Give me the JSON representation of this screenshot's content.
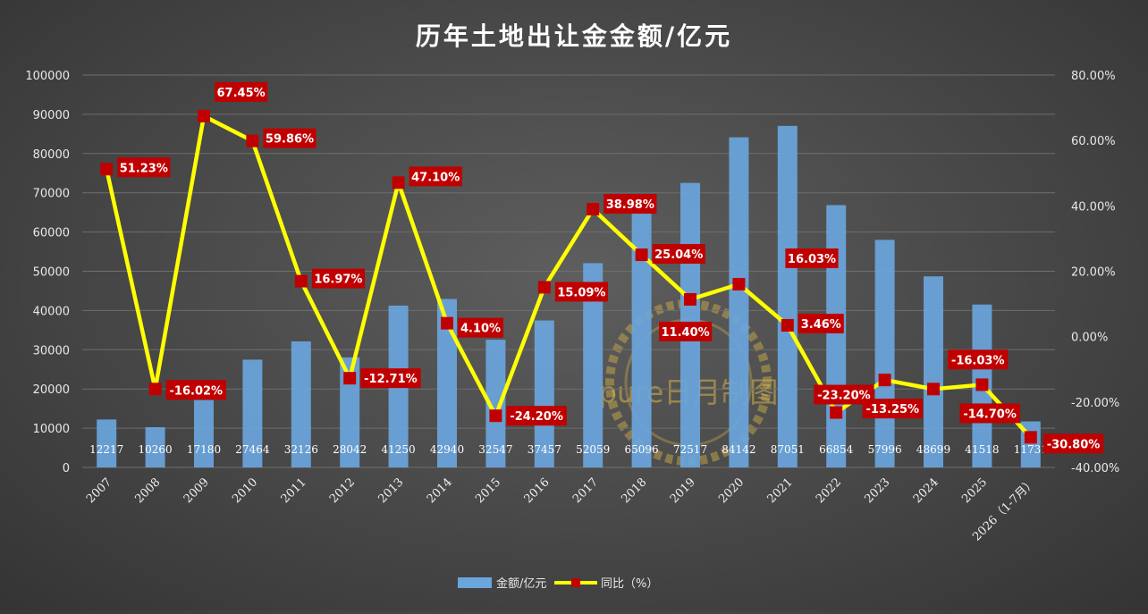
{
  "chart_data": {
    "type": "bar-line",
    "title": "历年土地出让金金额/亿元",
    "categories": [
      "2007",
      "2008",
      "2009",
      "2010",
      "2011",
      "2012",
      "2013",
      "2014",
      "2015",
      "2016",
      "2017",
      "2018",
      "2019",
      "2020",
      "2021",
      "2022",
      "2023",
      "2024",
      "2025",
      "2026（1-7月）"
    ],
    "series": [
      {
        "name": "金额/亿元",
        "type": "bar",
        "axis": "left",
        "color": "#6aa5dc",
        "values": [
          12217,
          10260,
          17180,
          27464,
          32126,
          28042,
          41250,
          42940,
          32547,
          37457,
          52059,
          65096,
          72517,
          84142,
          87051,
          66854,
          57996,
          48699,
          41518,
          11731
        ]
      },
      {
        "name": "同比（%）",
        "type": "line",
        "axis": "right",
        "color": "#ffff00",
        "marker_color": "#c00000",
        "values": [
          51.23,
          -16.02,
          67.45,
          59.86,
          16.97,
          -12.71,
          47.1,
          4.1,
          -24.2,
          15.09,
          38.98,
          25.04,
          11.4,
          16.03,
          3.46,
          -23.2,
          -13.25,
          -16.03,
          -14.7,
          -30.8
        ],
        "labels": [
          "51.23%",
          "-16.02%",
          "67.45%",
          "59.86%",
          "16.97%",
          "-12.71%",
          "47.10%",
          "4.10%",
          "-24.20%",
          "15.09%",
          "38.98%",
          "25.04%",
          "11.40%",
          "16.03%",
          "3.46%",
          "-23.20%",
          "-13.25%",
          "-16.03%",
          "-14.70%",
          "-30.80%"
        ]
      }
    ],
    "y_left": {
      "min": 0,
      "max": 100000,
      "ticks": [
        "0",
        "10000",
        "20000",
        "30000",
        "40000",
        "50000",
        "60000",
        "70000",
        "80000",
        "90000",
        "100000"
      ]
    },
    "y_right": {
      "min": -40,
      "max": 80,
      "ticks": [
        "-40.00%",
        "-20.00%",
        "0.00%",
        "20.00%",
        "40.00%",
        "60.00%",
        "80.00%"
      ]
    },
    "grid": true,
    "legend": "bottom-center",
    "legend_entries": [
      "金额/亿元",
      "同比（%）"
    ],
    "watermark": "pure日月制图"
  }
}
